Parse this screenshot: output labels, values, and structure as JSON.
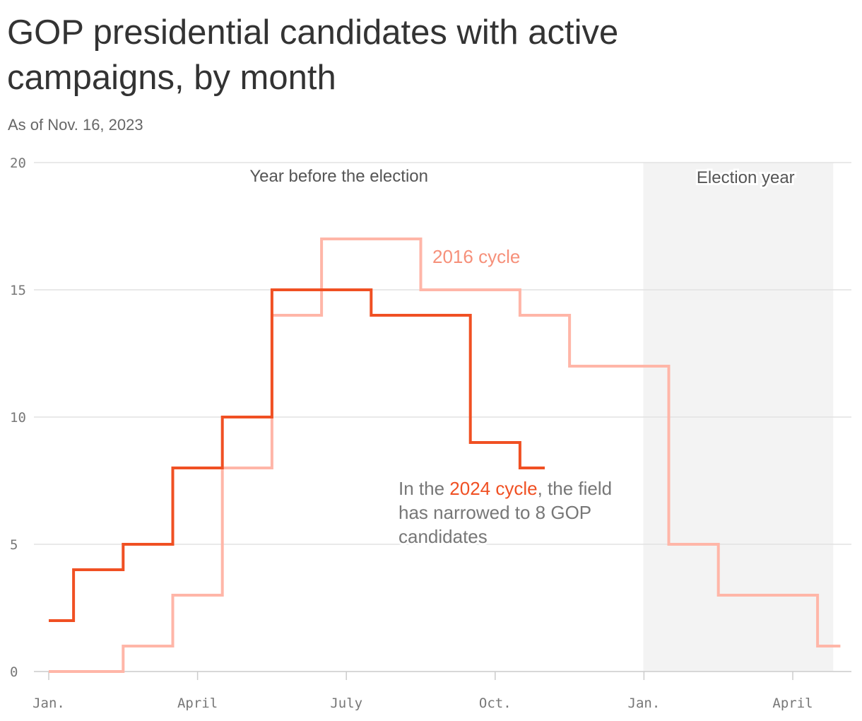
{
  "header": {
    "title": "GOP presidential candidates with active campaigns, by month",
    "subtitle": "As of Nov. 16, 2023"
  },
  "chart_data": {
    "type": "line",
    "step": true,
    "title": "GOP presidential candidates with active campaigns, by month",
    "subtitle": "As of Nov. 16, 2023",
    "xlabel": "",
    "ylabel": "",
    "ylim": [
      0,
      20
    ],
    "yticks": [
      0,
      5,
      10,
      15,
      20
    ],
    "xlim_months": [
      0,
      16
    ],
    "xticks": [
      {
        "label": "Jan.",
        "month": 0
      },
      {
        "label": "April",
        "month": 3
      },
      {
        "label": "July",
        "month": 6
      },
      {
        "label": "Oct.",
        "month": 9
      },
      {
        "label": "Jan.",
        "month": 12
      },
      {
        "label": "April",
        "month": 15
      }
    ],
    "grid": true,
    "bands": [
      {
        "label": "Year before the election",
        "from_month": 0,
        "to_month": 12,
        "shaded": false
      },
      {
        "label": "Election year",
        "from_month": 12,
        "to_month": 16,
        "shaded": true
      }
    ],
    "series": [
      {
        "name": "2016 cycle",
        "color": "#ffb6a8",
        "points": [
          {
            "month": 0,
            "value": 0
          },
          {
            "month": 1.5,
            "value": 1
          },
          {
            "month": 2.5,
            "value": 3
          },
          {
            "month": 3.5,
            "value": 8
          },
          {
            "month": 4.5,
            "value": 14
          },
          {
            "month": 5.5,
            "value": 17
          },
          {
            "month": 7.5,
            "value": 15
          },
          {
            "month": 9.5,
            "value": 14
          },
          {
            "month": 10.5,
            "value": 12
          },
          {
            "month": 12.5,
            "value": 5
          },
          {
            "month": 13.5,
            "value": 3
          },
          {
            "month": 15.5,
            "value": 1
          }
        ],
        "end_month": 16
      },
      {
        "name": "2024 cycle",
        "color": "#f05023",
        "points": [
          {
            "month": 0,
            "value": 2
          },
          {
            "month": 0.5,
            "value": 4
          },
          {
            "month": 1.5,
            "value": 5
          },
          {
            "month": 2.5,
            "value": 8
          },
          {
            "month": 3.5,
            "value": 10
          },
          {
            "month": 4.5,
            "value": 15
          },
          {
            "month": 6.5,
            "value": 14
          },
          {
            "month": 8.5,
            "value": 9
          },
          {
            "month": 9.5,
            "value": 8
          }
        ],
        "end_month": 10
      }
    ],
    "annotations": {
      "label_2016": "2016 cycle",
      "note_before": "In the ",
      "note_highlight": "2024 cycle",
      "note_after_line1": ", the field",
      "note_line2": "has narrowed to 8 GOP",
      "note_line3": "candidates"
    }
  }
}
